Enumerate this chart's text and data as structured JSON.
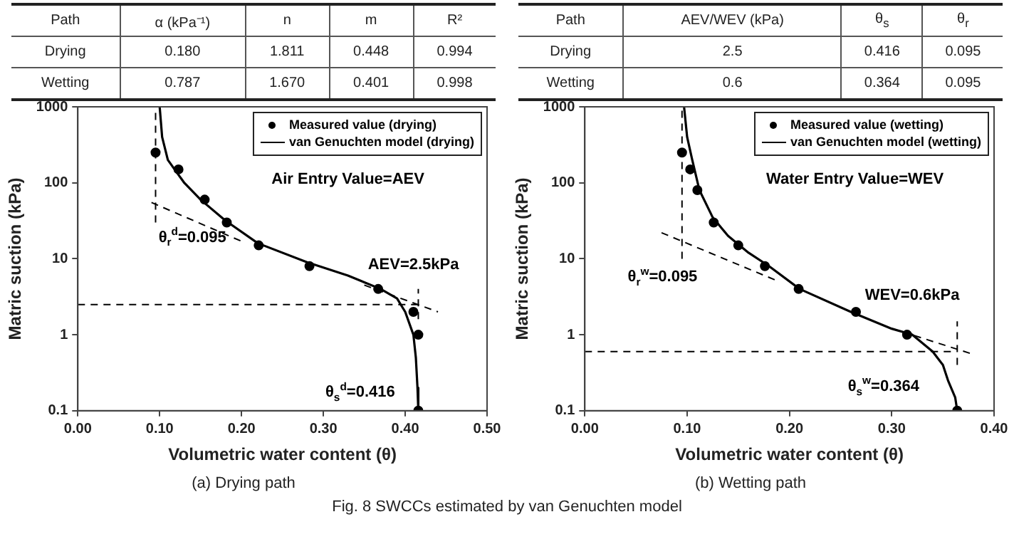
{
  "chart_data": [
    {
      "type": "other",
      "categories": [
        "Path",
        "α (kPa⁻¹)",
        "n",
        "m",
        "R²"
      ],
      "cell_labels": [
        [
          "Drying",
          "0.180",
          "1.811",
          "0.448",
          "0.994"
        ],
        [
          "Wetting",
          "0.787",
          "1.670",
          "0.401",
          "0.998"
        ]
      ]
    },
    {
      "type": "other",
      "categories": [
        "Path",
        "AEV/WEV (kPa)",
        "θ$_{s}$",
        "θ$_{r}$"
      ],
      "cell_labels": [
        [
          "Drying",
          "2.5",
          "0.416",
          "0.095"
        ],
        [
          "Wetting",
          "0.6",
          "0.364",
          "0.095"
        ]
      ]
    },
    {
      "type": "scatter",
      "title": "(a) Drying path",
      "xlabel": "Volumetric water content (θ)",
      "ylabel": "Matric suction (kPa)",
      "log": "y",
      "legend": "top right",
      "xlim": [
        0,
        0.5
      ],
      "xticks": [
        {
          "value": 0,
          "label": "0.00"
        },
        {
          "value": 0.1,
          "label": "0.10"
        },
        {
          "value": 0.2,
          "label": "0.20"
        },
        {
          "value": 0.3,
          "label": "0.30"
        },
        {
          "value": 0.4,
          "label": "0.40"
        },
        {
          "value": 0.5,
          "label": "0.50"
        }
      ],
      "ylim": [
        0.1,
        1000
      ],
      "yticks": [
        0.1,
        1,
        10,
        100,
        1000
      ],
      "series": [
        {
          "name": "Measured value (drying)",
          "type": "scatter",
          "marker": "circle",
          "color": "#000000",
          "x": [
            0.095,
            0.123,
            0.155,
            0.182,
            0.221,
            0.283,
            0.367,
            0.41,
            0.416,
            0.416
          ],
          "values": [
            250,
            150,
            60,
            30,
            15,
            8,
            4,
            2,
            1,
            0.1
          ]
        },
        {
          "name": "van Genuchten model (drying)",
          "type": "line",
          "color": "#000000",
          "line_style": "solid",
          "x": [
            0.1,
            0.103,
            0.11,
            0.13,
            0.15,
            0.18,
            0.22,
            0.28,
            0.33,
            0.37,
            0.39,
            0.4,
            0.41,
            0.413,
            0.415,
            0.416
          ],
          "values": [
            1000,
            400,
            200,
            100,
            60,
            32,
            16,
            9,
            6,
            4,
            3,
            2,
            1,
            0.5,
            0.2,
            0.1
          ]
        },
        {
          "type": "line",
          "color": "#000000",
          "line_style": "dashed",
          "x": [
            0.095,
            0.095
          ],
          "values": [
            30,
            1000
          ]
        },
        {
          "type": "line",
          "color": "#000000",
          "line_style": "dashed",
          "x": [
            0.09,
            0.2
          ],
          "values": [
            55,
            17
          ]
        },
        {
          "type": "line",
          "color": "#000000",
          "line_style": "dashed",
          "x": [
            0,
            0.415
          ],
          "values": [
            2.5,
            2.5
          ]
        },
        {
          "type": "line",
          "color": "#000000",
          "line_style": "dashed",
          "x": [
            0.416,
            0.416
          ],
          "values": [
            1.6,
            4
          ]
        },
        {
          "type": "line",
          "color": "#000000",
          "line_style": "dashed",
          "x": [
            0.35,
            0.44
          ],
          "values": [
            4.5,
            2
          ]
        }
      ],
      "annotations": [
        "Air Entry Value=AEV",
        "θ$_{r}$$^{d}$=0.095",
        "AEV=2.5kPa",
        "θ$_{s}$$^{d}$=0.416"
      ]
    },
    {
      "type": "scatter",
      "title": "(b) Wetting path",
      "xlabel": "Volumetric water content (θ)",
      "ylabel": "Matric suction (kPa)",
      "log": "y",
      "legend": "top right",
      "xlim": [
        0,
        0.4
      ],
      "xticks": [
        {
          "value": 0,
          "label": "0.00"
        },
        {
          "value": 0.1,
          "label": "0.10"
        },
        {
          "value": 0.2,
          "label": "0.20"
        },
        {
          "value": 0.3,
          "label": "0.30"
        },
        {
          "value": 0.4,
          "label": "0.40"
        }
      ],
      "ylim": [
        0.1,
        1000
      ],
      "yticks": [
        0.1,
        1,
        10,
        100,
        1000
      ],
      "series": [
        {
          "name": "Measured value (wetting)",
          "type": "scatter",
          "marker": "circle",
          "color": "#000000",
          "x": [
            0.095,
            0.103,
            0.11,
            0.126,
            0.15,
            0.176,
            0.209,
            0.265,
            0.315,
            0.364
          ],
          "values": [
            250,
            150,
            80,
            30,
            15,
            8,
            4,
            2,
            1,
            0.1
          ]
        },
        {
          "name": "van Genuchten model (wetting)",
          "type": "line",
          "color": "#000000",
          "line_style": "solid",
          "x": [
            0.097,
            0.1,
            0.105,
            0.112,
            0.125,
            0.14,
            0.16,
            0.18,
            0.21,
            0.26,
            0.3,
            0.32,
            0.34,
            0.35,
            0.355,
            0.362,
            0.364
          ],
          "values": [
            1000,
            400,
            200,
            80,
            35,
            20,
            12,
            8,
            4,
            2,
            1.2,
            1,
            0.6,
            0.4,
            0.25,
            0.15,
            0.1
          ]
        },
        {
          "type": "line",
          "color": "#000000",
          "line_style": "dashed",
          "x": [
            0.095,
            0.095
          ],
          "values": [
            10,
            1000
          ]
        },
        {
          "type": "line",
          "color": "#000000",
          "line_style": "dashed",
          "x": [
            0.075,
            0.19
          ],
          "values": [
            22,
            5
          ]
        },
        {
          "type": "line",
          "color": "#000000",
          "line_style": "dashed",
          "x": [
            0,
            0.36
          ],
          "values": [
            0.6,
            0.6
          ]
        },
        {
          "type": "line",
          "color": "#000000",
          "line_style": "dashed",
          "x": [
            0.364,
            0.364
          ],
          "values": [
            0.4,
            1.5
          ]
        },
        {
          "type": "line",
          "color": "#000000",
          "line_style": "dashed",
          "x": [
            0.31,
            0.38
          ],
          "values": [
            1.1,
            0.55
          ]
        }
      ],
      "annotations": [
        "Water Entry Value=WEV",
        "θ$_{r}$$^{w}$=0.095",
        "WEV=0.6kPa",
        "θ$_{s}$$^{w}$=0.364"
      ]
    },
    {
      "type": "other",
      "title": "Fig. 8 SWCCs estimated by van Genuchten model"
    }
  ]
}
